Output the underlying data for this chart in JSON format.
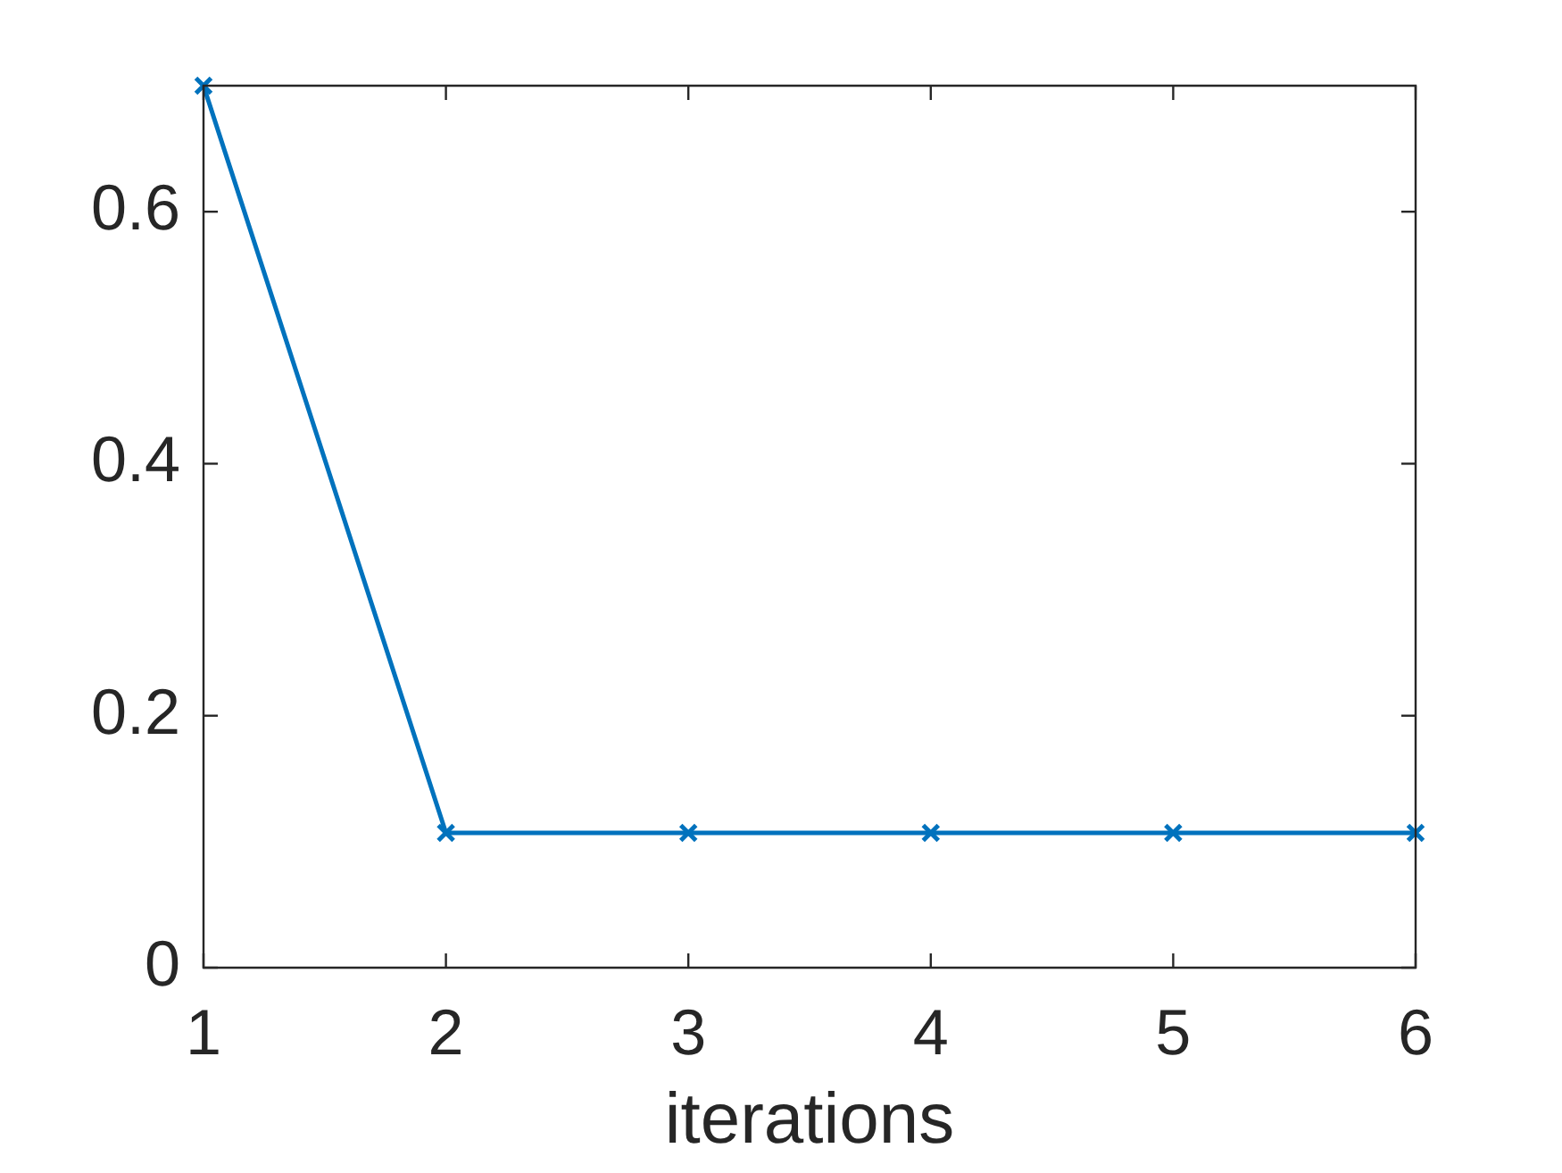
{
  "chart_data": {
    "type": "line",
    "xlabel": "iterations",
    "x": [
      1,
      2,
      3,
      4,
      5,
      6
    ],
    "series": [
      {
        "color": "#0072bd",
        "values": [
          0.7,
          0.107,
          0.107,
          0.107,
          0.107,
          0.107
        ]
      }
    ],
    "xlim": [
      1,
      6
    ],
    "xticks": [
      1,
      2,
      3,
      4,
      5,
      6
    ],
    "ylim": [
      0,
      0.7
    ],
    "yticks": [
      0,
      0.2,
      0.4,
      0.6
    ],
    "marker": "cross",
    "line_style": "solid"
  }
}
